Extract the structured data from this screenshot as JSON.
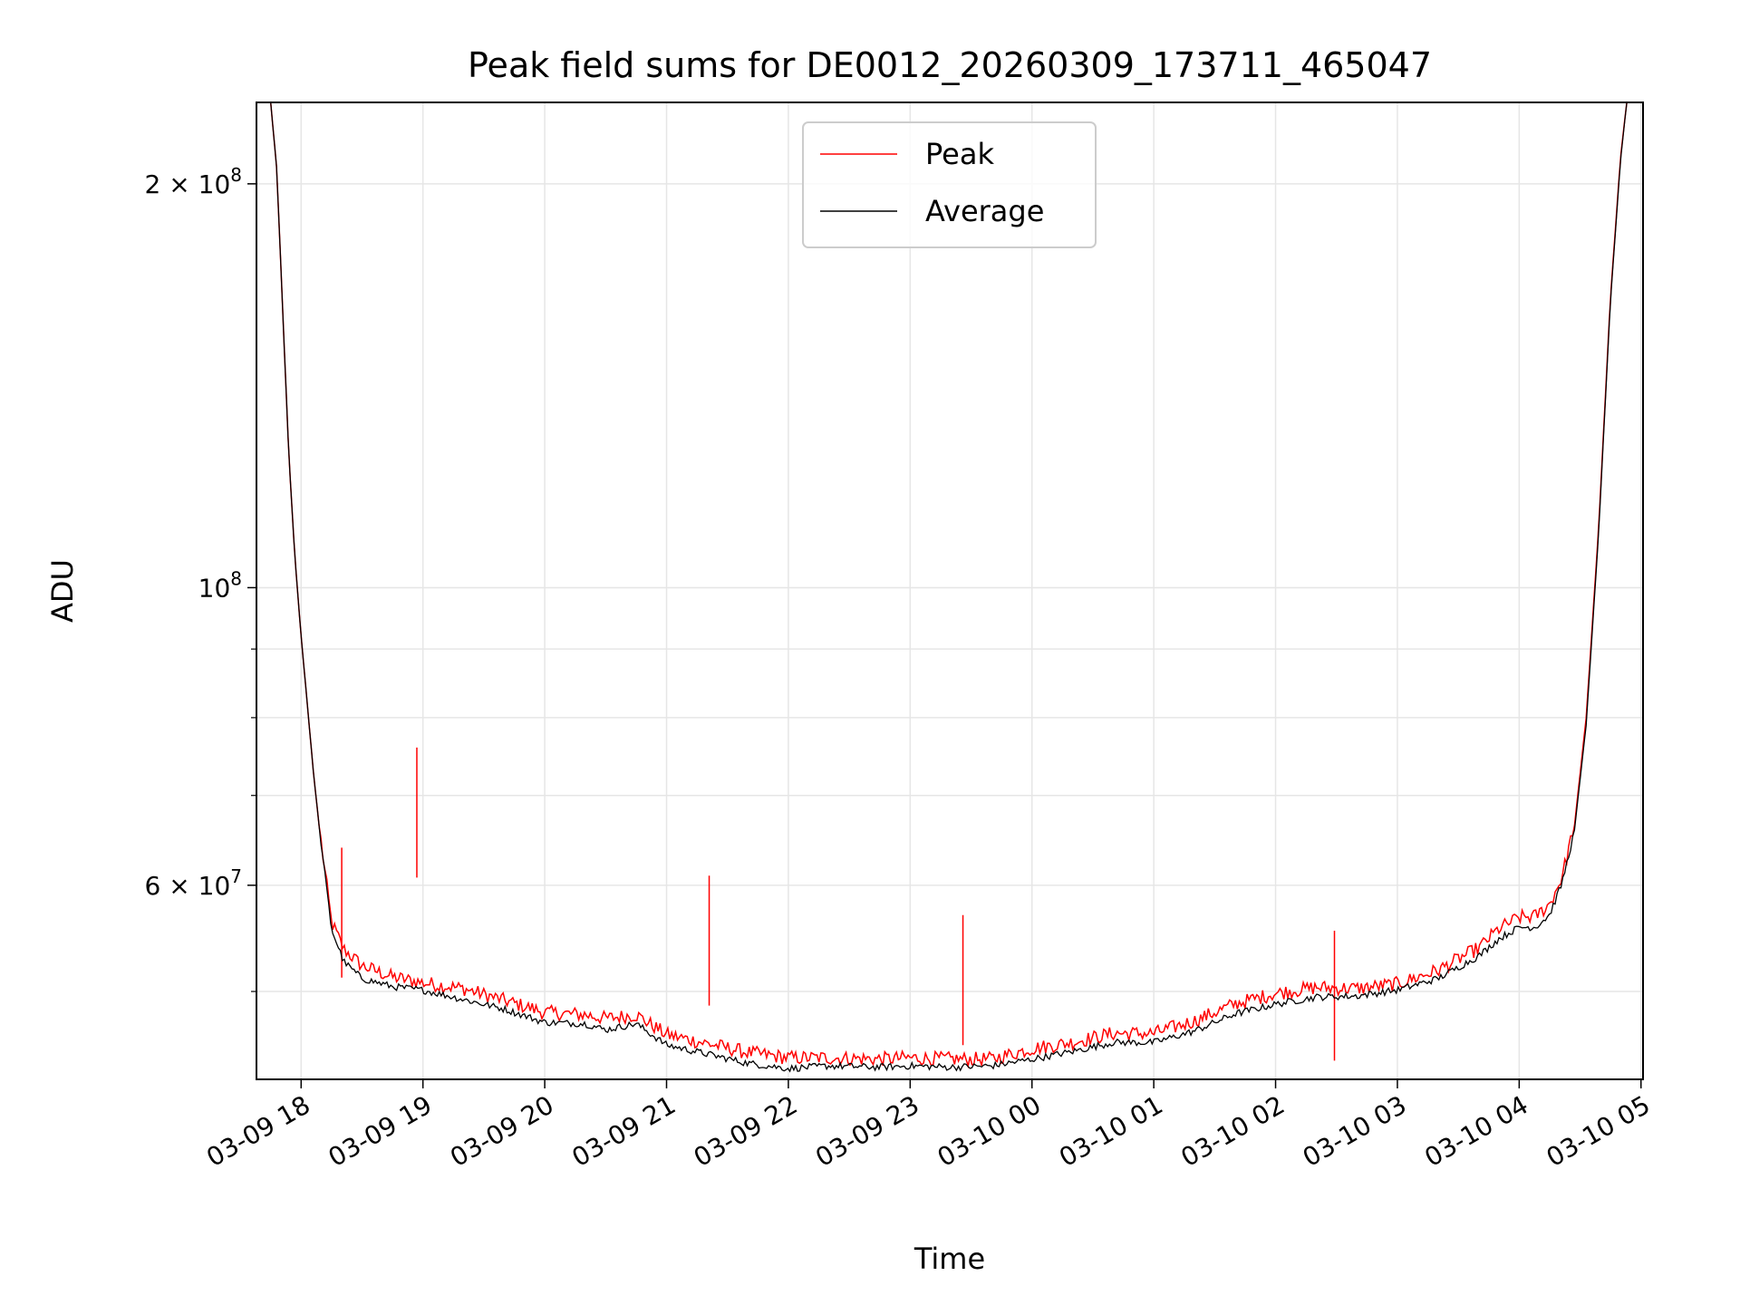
{
  "chart_data": {
    "type": "line",
    "title": "Peak field sums for DE0012_20260309_173711_465047",
    "xlabel": "Time",
    "ylabel": "ADU",
    "x_range": [
      "2026-03-09 17:38",
      "2026-03-10 05:01"
    ],
    "y_scale": "log",
    "ylim": [
      43000000,
      230000000
    ],
    "grid": true,
    "legend_position": "top-center",
    "x_ticks": [
      "03-09 18",
      "03-09 19",
      "03-09 20",
      "03-09 21",
      "03-09 22",
      "03-09 23",
      "03-10 00",
      "03-10 01",
      "03-10 02",
      "03-10 03",
      "03-10 04",
      "03-10 05"
    ],
    "y_ticks": [
      {
        "value": 200000000,
        "label": "2 × 10^8"
      },
      {
        "value": 100000000,
        "label": "10^8"
      },
      {
        "value": 60000000,
        "label": "6 × 10^7"
      }
    ],
    "series": [
      {
        "name": "Peak",
        "color": "#ff0000",
        "x": [
          "2026-03-09 17:45",
          "2026-03-09 17:48",
          "2026-03-09 17:51",
          "2026-03-09 17:54",
          "2026-03-09 17:57",
          "2026-03-09 18:00",
          "2026-03-09 18:03",
          "2026-03-09 18:06",
          "2026-03-09 18:10",
          "2026-03-09 18:15",
          "2026-03-09 18:21",
          "2026-03-09 18:30",
          "2026-03-09 18:45",
          "2026-03-09 19:00",
          "2026-03-09 19:20",
          "2026-03-09 19:40",
          "2026-03-09 20:00",
          "2026-03-09 20:20",
          "2026-03-09 20:30",
          "2026-03-09 20:45",
          "2026-03-09 21:00",
          "2026-03-09 21:20",
          "2026-03-09 21:40",
          "2026-03-09 22:00",
          "2026-03-09 22:20",
          "2026-03-09 22:45",
          "2026-03-09 23:00",
          "2026-03-09 23:20",
          "2026-03-09 23:40",
          "2026-03-10 00:00",
          "2026-03-10 00:20",
          "2026-03-10 00:40",
          "2026-03-10 01:00",
          "2026-03-10 01:20",
          "2026-03-10 01:40",
          "2026-03-10 02:00",
          "2026-03-10 02:20",
          "2026-03-10 02:40",
          "2026-03-10 03:00",
          "2026-03-10 03:20",
          "2026-03-10 03:40",
          "2026-03-10 03:50",
          "2026-03-10 04:00",
          "2026-03-10 04:08",
          "2026-03-10 04:15",
          "2026-03-10 04:21",
          "2026-03-10 04:27",
          "2026-03-10 04:33",
          "2026-03-10 04:39",
          "2026-03-10 04:45",
          "2026-03-10 04:50",
          "2026-03-10 04:53"
        ],
        "values": [
          230000000,
          205000000,
          160000000,
          125000000,
          105000000,
          92000000,
          82000000,
          73000000,
          64000000,
          56000000,
          53500000,
          52000000,
          51000000,
          50500000,
          50000000,
          49000000,
          48000000,
          47800000,
          47500000,
          47800000,
          46200000,
          45500000,
          44800000,
          44400000,
          44400000,
          44300000,
          44400000,
          44300000,
          44300000,
          45100000,
          45600000,
          46300000,
          46300000,
          47300000,
          48700000,
          49600000,
          50100000,
          50000000,
          50400000,
          51600000,
          53600000,
          55400000,
          56500000,
          56600000,
          57800000,
          60500000,
          66000000,
          80000000,
          110000000,
          165000000,
          210000000,
          230000000
        ],
        "spikes": [
          {
            "x": "2026-03-09 18:20",
            "value": 64000000
          },
          {
            "x": "2026-03-09 18:57",
            "value": 76000000
          },
          {
            "x": "2026-03-09 21:21",
            "value": 61000000
          },
          {
            "x": "2026-03-09 23:26",
            "value": 57000000
          },
          {
            "x": "2026-03-10 02:29",
            "value": 55500000
          }
        ]
      },
      {
        "name": "Average",
        "color": "#000000",
        "x": [
          "2026-03-09 17:45",
          "2026-03-09 17:48",
          "2026-03-09 17:51",
          "2026-03-09 17:54",
          "2026-03-09 17:57",
          "2026-03-09 18:00",
          "2026-03-09 18:03",
          "2026-03-09 18:06",
          "2026-03-09 18:10",
          "2026-03-09 18:15",
          "2026-03-09 18:21",
          "2026-03-09 18:30",
          "2026-03-09 18:45",
          "2026-03-09 19:00",
          "2026-03-09 19:20",
          "2026-03-09 19:40",
          "2026-03-09 20:00",
          "2026-03-09 20:20",
          "2026-03-09 20:30",
          "2026-03-09 20:45",
          "2026-03-09 21:00",
          "2026-03-09 21:20",
          "2026-03-09 21:40",
          "2026-03-09 22:00",
          "2026-03-09 22:20",
          "2026-03-09 22:45",
          "2026-03-09 23:00",
          "2026-03-09 23:20",
          "2026-03-09 23:40",
          "2026-03-10 00:00",
          "2026-03-10 00:20",
          "2026-03-10 00:40",
          "2026-03-10 01:00",
          "2026-03-10 01:20",
          "2026-03-10 01:40",
          "2026-03-10 02:00",
          "2026-03-10 02:20",
          "2026-03-10 02:40",
          "2026-03-10 03:00",
          "2026-03-10 03:20",
          "2026-03-10 03:40",
          "2026-03-10 03:50",
          "2026-03-10 04:00",
          "2026-03-10 04:08",
          "2026-03-10 04:15",
          "2026-03-10 04:21",
          "2026-03-10 04:27",
          "2026-03-10 04:33",
          "2026-03-10 04:39",
          "2026-03-10 04:45",
          "2026-03-10 04:50",
          "2026-03-10 04:53"
        ],
        "values": [
          230000000,
          205000000,
          160000000,
          125000000,
          105000000,
          92000000,
          82000000,
          73000000,
          64000000,
          55500000,
          52500000,
          51000000,
          50300000,
          50000000,
          49200000,
          48400000,
          47300000,
          47200000,
          46700000,
          47200000,
          45500000,
          44800000,
          44100000,
          43700000,
          43900000,
          43800000,
          43900000,
          43800000,
          43900000,
          44400000,
          45000000,
          45700000,
          45700000,
          46600000,
          48000000,
          48800000,
          49400000,
          49500000,
          50000000,
          51000000,
          53000000,
          54600000,
          55700000,
          55700000,
          56900000,
          60000000,
          65500000,
          79000000,
          109000000,
          164000000,
          209000000,
          230000000
        ]
      }
    ]
  }
}
